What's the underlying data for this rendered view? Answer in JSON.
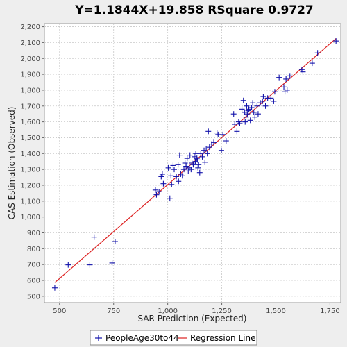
{
  "chart_data": {
    "type": "scatter",
    "title": "Y=1.1844X+19.858    RSquare 0.9727",
    "xlabel": "SAR Prediction (Expected)",
    "ylabel": "CAS Estimation (Observed)",
    "xlim": [
      430,
      1800
    ],
    "ylim": [
      460,
      2220
    ],
    "xticks": [
      500,
      750,
      1000,
      1250,
      1500,
      1750
    ],
    "xtick_labels": [
      "500",
      "750",
      "1,000",
      "1,250",
      "1,500",
      "1,750"
    ],
    "yticks": [
      500,
      600,
      700,
      800,
      900,
      1000,
      1100,
      1200,
      1300,
      1400,
      1500,
      1600,
      1700,
      1800,
      1900,
      2000,
      2100,
      2200
    ],
    "ytick_labels": [
      "500",
      "600",
      "700",
      "800",
      "900",
      "1,000",
      "1,100",
      "1,200",
      "1,300",
      "1,400",
      "1,500",
      "1,600",
      "1,700",
      "1,800",
      "1,900",
      "2,000",
      "2,100",
      "2,200"
    ],
    "grid": true,
    "legend_position": "bottom",
    "colors": {
      "points": "#1111aa",
      "line": "#dd2222",
      "plot_bg": "#ffffff",
      "grid": "#c8c8c8"
    },
    "series": [
      {
        "name": "PeopleAge30to44",
        "kind": "points",
        "points": [
          [
            478,
            553
          ],
          [
            540,
            698
          ],
          [
            640,
            698
          ],
          [
            660,
            873
          ],
          [
            743,
            710
          ],
          [
            757,
            845
          ],
          [
            943,
            1170
          ],
          [
            948,
            1140
          ],
          [
            960,
            1160
          ],
          [
            970,
            1255
          ],
          [
            975,
            1270
          ],
          [
            980,
            1210
          ],
          [
            1003,
            1310
          ],
          [
            1010,
            1118
          ],
          [
            1015,
            1260
          ],
          [
            1018,
            1205
          ],
          [
            1025,
            1325
          ],
          [
            1030,
            1300
          ],
          [
            1040,
            1255
          ],
          [
            1048,
            1330
          ],
          [
            1050,
            1225
          ],
          [
            1055,
            1390
          ],
          [
            1060,
            1270
          ],
          [
            1068,
            1260
          ],
          [
            1075,
            1300
          ],
          [
            1080,
            1340
          ],
          [
            1085,
            1320
          ],
          [
            1090,
            1370
          ],
          [
            1095,
            1290
          ],
          [
            1100,
            1310
          ],
          [
            1103,
            1390
          ],
          [
            1108,
            1300
          ],
          [
            1112,
            1340
          ],
          [
            1118,
            1330
          ],
          [
            1123,
            1380
          ],
          [
            1128,
            1350
          ],
          [
            1130,
            1400
          ],
          [
            1135,
            1370
          ],
          [
            1138,
            1360
          ],
          [
            1140,
            1310
          ],
          [
            1143,
            1330
          ],
          [
            1148,
            1280
          ],
          [
            1153,
            1400
          ],
          [
            1160,
            1380
          ],
          [
            1168,
            1420
          ],
          [
            1172,
            1345
          ],
          [
            1178,
            1430
          ],
          [
            1183,
            1400
          ],
          [
            1188,
            1540
          ],
          [
            1193,
            1440
          ],
          [
            1203,
            1460
          ],
          [
            1213,
            1470
          ],
          [
            1228,
            1530
          ],
          [
            1233,
            1520
          ],
          [
            1248,
            1420
          ],
          [
            1255,
            1520
          ],
          [
            1270,
            1480
          ],
          [
            1305,
            1650
          ],
          [
            1310,
            1585
          ],
          [
            1320,
            1540
          ],
          [
            1328,
            1600
          ],
          [
            1333,
            1590
          ],
          [
            1343,
            1680
          ],
          [
            1350,
            1735
          ],
          [
            1355,
            1660
          ],
          [
            1358,
            1600
          ],
          [
            1362,
            1630
          ],
          [
            1365,
            1700
          ],
          [
            1368,
            1650
          ],
          [
            1372,
            1670
          ],
          [
            1375,
            1680
          ],
          [
            1382,
            1610
          ],
          [
            1388,
            1690
          ],
          [
            1393,
            1720
          ],
          [
            1398,
            1660
          ],
          [
            1403,
            1630
          ],
          [
            1413,
            1700
          ],
          [
            1418,
            1650
          ],
          [
            1428,
            1720
          ],
          [
            1438,
            1730
          ],
          [
            1442,
            1760
          ],
          [
            1452,
            1700
          ],
          [
            1462,
            1750
          ],
          [
            1477,
            1750
          ],
          [
            1490,
            1730
          ],
          [
            1495,
            1790
          ],
          [
            1515,
            1880
          ],
          [
            1537,
            1820
          ],
          [
            1542,
            1790
          ],
          [
            1547,
            1870
          ],
          [
            1552,
            1800
          ],
          [
            1565,
            1890
          ],
          [
            1620,
            1930
          ],
          [
            1625,
            1915
          ],
          [
            1668,
            1970
          ],
          [
            1693,
            2035
          ],
          [
            1778,
            2110
          ]
        ]
      },
      {
        "name": "Regression Line",
        "kind": "line",
        "slope": 1.1844,
        "intercept": 19.858,
        "x_range": [
          478,
          1778
        ]
      }
    ]
  }
}
